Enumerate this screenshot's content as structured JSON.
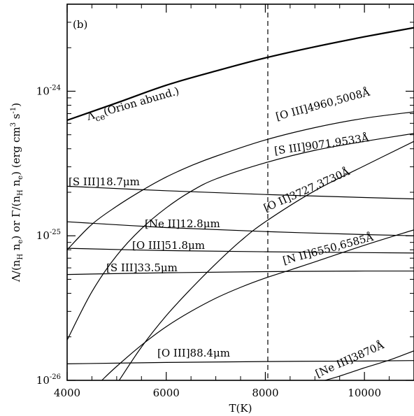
{
  "chart_data": {
    "type": "line",
    "panel_label": "(b)",
    "xlabel": "T(K)",
    "ylabel": "Λ/(n_H n_e) or Γ/(n_H n_e) (erg cm³ s⁻¹)",
    "ylabel_parts": {
      "a": "Λ/(n",
      "a_sub1": "H",
      "b": " n",
      "b_sub": "e",
      "c": ")  or  Γ/(n",
      "c_sub1": "H",
      "d": " n",
      "d_sub": "e",
      "e": ")  (erg cm",
      "e_sup": "3",
      "f": " s",
      "f_sup": "-1",
      "g": ")"
    },
    "xlim": [
      4000,
      11000
    ],
    "ylim": [
      1e-26,
      4e-24
    ],
    "yscale": "log",
    "grid": false,
    "x_ticks": [
      {
        "value": 4000,
        "label": "4000"
      },
      {
        "value": 6000,
        "label": "6000"
      },
      {
        "value": 8000,
        "label": "8000"
      },
      {
        "value": 10000,
        "label": "10000"
      }
    ],
    "y_ticks": [
      {
        "value": 1e-26,
        "base": "10",
        "exp": "-26"
      },
      {
        "value": 1e-25,
        "base": "10",
        "exp": "-25"
      },
      {
        "value": 1e-24,
        "base": "10",
        "exp": "-24"
      }
    ],
    "vline": 8050,
    "series": [
      {
        "name": "Λce(Orion abund.)",
        "thick": true,
        "x": [
          4000,
          5000,
          6000,
          7000,
          8000,
          9000,
          10000,
          11000
        ],
        "y": [
          6.3e-25,
          8.3e-25,
          1.1e-24,
          1.38e-24,
          1.7e-24,
          2.03e-24,
          2.38e-24,
          2.75e-24
        ]
      },
      {
        "name": "[O III]4960,5008Å",
        "x": [
          4000,
          4500,
          5000,
          5500,
          6000,
          6500,
          7000,
          8000,
          9000,
          10000,
          11000
        ],
        "y": [
          8e-26,
          1.2e-25,
          1.6e-25,
          2.05e-25,
          2.55e-25,
          3.05e-25,
          3.55e-25,
          4.6e-25,
          5.6e-25,
          6.5e-25,
          7.2e-25
        ]
      },
      {
        "name": "[S III]9071,9533Å",
        "x": [
          4000,
          4500,
          5000,
          5500,
          6000,
          6500,
          7000,
          8000,
          9000,
          10000,
          11000
        ],
        "y": [
          1.9e-26,
          4.1e-26,
          7.3e-26,
          1.12e-25,
          1.56e-25,
          2.03e-25,
          2.47e-25,
          3.2e-25,
          3.9e-25,
          4.5e-25,
          5.1e-25
        ]
      },
      {
        "name": "[O II]3727,3730Å",
        "x": [
          5050,
          5500,
          6000,
          6500,
          7000,
          7500,
          8000,
          9000,
          10000,
          11000
        ],
        "y": [
          1e-26,
          1.7e-26,
          2.8e-26,
          4.3e-26,
          6.4e-26,
          9.2e-26,
          1.25e-25,
          2.05e-25,
          3.05e-25,
          4.5e-25
        ]
      },
      {
        "name": "[N II]6550,6585Å",
        "x": [
          4700,
          5000,
          5500,
          6000,
          6500,
          7000,
          7500,
          8000,
          8500,
          9000,
          10000,
          11000
        ],
        "y": [
          1e-26,
          1.25e-26,
          1.75e-26,
          2.35e-26,
          3e-26,
          3.7e-26,
          4.4e-26,
          5.1e-26,
          5.8e-26,
          6.6e-26,
          8.6e-26,
          1.1e-25
        ]
      },
      {
        "name": "[Ne III]3870Å",
        "x": [
          9200,
          9500,
          10000,
          10500,
          11000
        ],
        "y": [
          1e-26,
          1.07e-26,
          1.22e-26,
          1.38e-26,
          1.6e-26
        ]
      },
      {
        "name": "[S III]18.7μm",
        "x": [
          4000,
          6000,
          8000,
          10000,
          11000
        ],
        "y": [
          2.2e-25,
          2.05e-25,
          1.93e-25,
          1.84e-25,
          1.8e-25
        ]
      },
      {
        "name": "[Ne II]12.8μm",
        "x": [
          4000,
          6000,
          8000,
          10000,
          11000
        ],
        "y": [
          1.25e-25,
          1.14e-25,
          1.07e-25,
          1.02e-25,
          1e-25
        ]
      },
      {
        "name": "[O III]51.8μm",
        "x": [
          4000,
          6000,
          8000,
          10000,
          11000
        ],
        "y": [
          8.2e-26,
          7.9e-26,
          7.75e-26,
          7.65e-26,
          7.6e-26
        ]
      },
      {
        "name": "[S III]33.5μm",
        "x": [
          4000,
          6000,
          8000,
          10000,
          11000
        ],
        "y": [
          5.4e-26,
          5.55e-26,
          5.65e-26,
          5.7e-26,
          5.7e-26
        ]
      },
      {
        "name": "[O III]88.4μm",
        "x": [
          4000,
          6000,
          8000,
          10000,
          11000
        ],
        "y": [
          1.3e-26,
          1.33e-26,
          1.35e-26,
          1.36e-26,
          1.37e-26
        ]
      }
    ],
    "labels": {
      "cooling": {
        "main": "Λ",
        "sub": "ce",
        "rest": "(Orion abund.)"
      },
      "o3_opt": "[O III]4960,5008Å",
      "s3_opt": "[S III]9071,9533Å",
      "o2": "[O II]3727,3730Å",
      "n2": "[N II]6550,6585Å",
      "ne3": "[Ne III]3870Å",
      "s3_187": "[S III]18.7μm",
      "ne2": "[Ne II]12.8μm",
      "o3_518": "[O III]51.8μm",
      "s3_335": "[S III]33.5μm",
      "o3_884": "[O III]88.4μm"
    }
  }
}
